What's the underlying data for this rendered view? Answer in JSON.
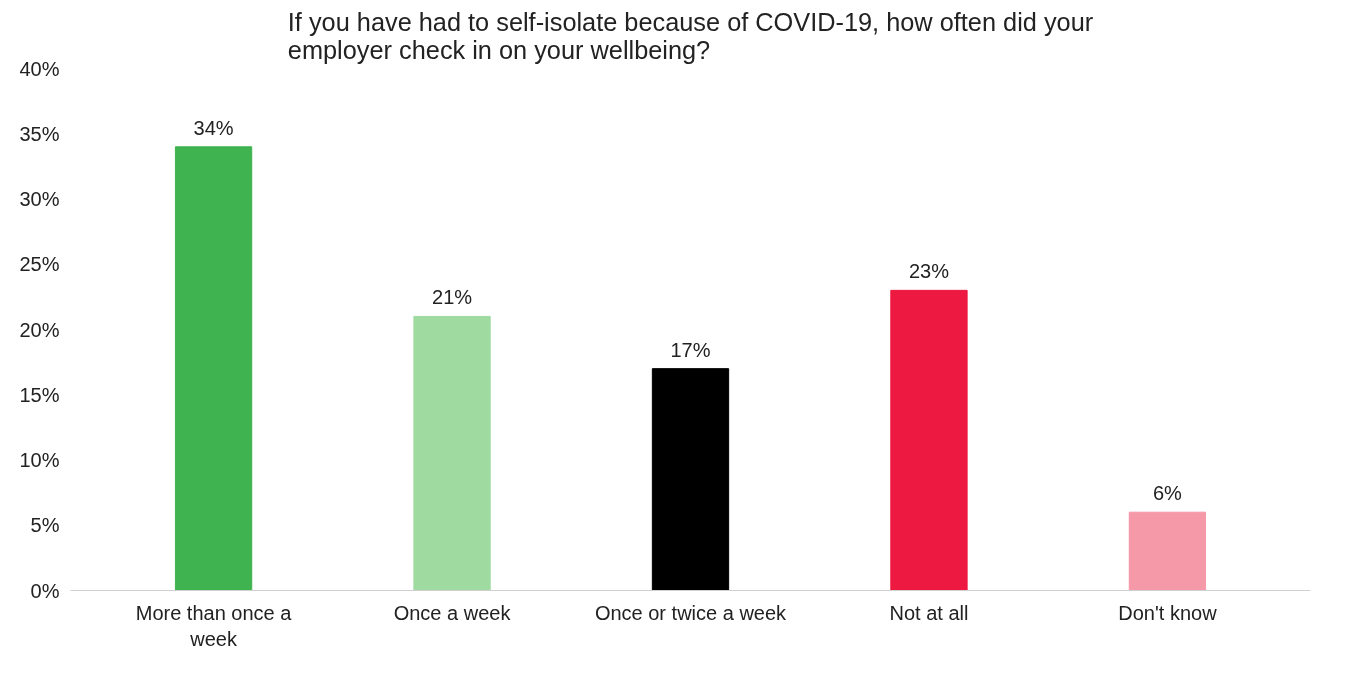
{
  "chart_data": {
    "type": "bar",
    "title": "If you have had to self-isolate because of COVID-19, how often did your employer check in on your wellbeing?",
    "categories": [
      "More than once a week",
      "Once a week",
      "Once or twice a week",
      "Not at all",
      "Don't know"
    ],
    "values": [
      34,
      21,
      17,
      23,
      6
    ],
    "colors": [
      "#3fb34f",
      "#9fdba0",
      "#000000",
      "#ed1941",
      "#f598a8"
    ],
    "value_labels": [
      "34%",
      "21%",
      "17%",
      "23%",
      "6%"
    ],
    "ylim": [
      0,
      40
    ],
    "yticks": [
      {
        "value": 0,
        "label": "0%"
      },
      {
        "value": 5,
        "label": "5%"
      },
      {
        "value": 10,
        "label": "10%"
      },
      {
        "value": 15,
        "label": "15%"
      },
      {
        "value": 20,
        "label": "20%"
      },
      {
        "value": 25,
        "label": "25%"
      },
      {
        "value": 30,
        "label": "30%"
      },
      {
        "value": 35,
        "label": "35%"
      },
      {
        "value": 40,
        "label": "40%"
      }
    ],
    "grid": false
  }
}
